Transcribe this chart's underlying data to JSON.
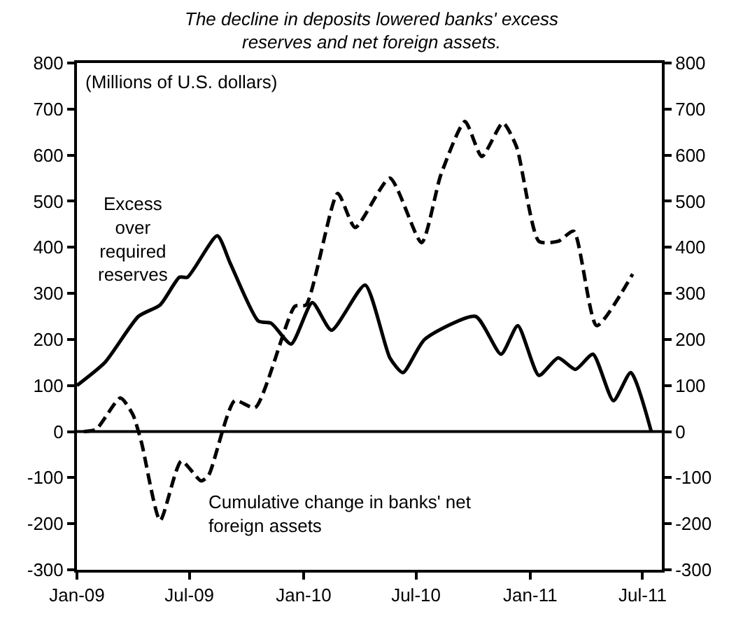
{
  "chart_data": {
    "type": "line",
    "title": "The decline in deposits lowered banks' excess reserves and net foreign assets.",
    "annotations": [
      "(Millions of U.S. dollars)"
    ],
    "series": [
      {
        "name": "Excess over required reserves",
        "color": "#000000",
        "line_style": "solid",
        "x": [
          "2009-01-01",
          "2009-02-15",
          "2009-04-10",
          "2009-05-15",
          "2009-06-15",
          "2009-06-28",
          "2009-08-15",
          "2009-09-05",
          "2009-10-20",
          "2009-11-10",
          "2009-12-12",
          "2010-01-15",
          "2010-02-15",
          "2010-04-10",
          "2010-05-20",
          "2010-06-10",
          "2010-07-15",
          "2010-10-05",
          "2010-11-15",
          "2010-12-12",
          "2011-01-15",
          "2011-02-15",
          "2011-03-15",
          "2011-04-12",
          "2011-05-15",
          "2011-06-12",
          "2011-07-15"
        ],
        "values": [
          100,
          150,
          250,
          275,
          335,
          335,
          425,
          365,
          240,
          235,
          190,
          280,
          220,
          318,
          160,
          128,
          200,
          250,
          168,
          230,
          122,
          160,
          135,
          168,
          67,
          128,
          0
        ]
      },
      {
        "name": "Cumulative change in banks' net foreign assets",
        "color": "#000000",
        "line_style": "dashed",
        "x": [
          "2009-01-12",
          "2009-02-01",
          "2009-03-12",
          "2009-04-01",
          "2009-04-15",
          "2009-05-15",
          "2009-06-18",
          "2009-07-20",
          "2009-08-01",
          "2009-09-12",
          "2009-10-15",
          "2009-12-18",
          "2010-01-05",
          "2010-02-25",
          "2010-03-25",
          "2010-05-20",
          "2010-07-10",
          "2010-08-10",
          "2010-09-18",
          "2010-10-15",
          "2010-11-18",
          "2010-12-10",
          "2011-01-15",
          "2011-02-15",
          "2011-03-12",
          "2011-04-18",
          "2011-06-15"
        ],
        "values": [
          0,
          5,
          73,
          37,
          -24,
          -193,
          -64,
          -107,
          -95,
          67,
          52,
          272,
          275,
          517,
          443,
          550,
          410,
          557,
          673,
          597,
          670,
          618,
          413,
          413,
          435,
          230,
          342
        ]
      }
    ],
    "xlim": [
      "2009-01-01",
      "2011-08-01"
    ],
    "xticks": [
      {
        "value": "2009-01-01",
        "label": "Jan-09"
      },
      {
        "value": "2009-07-01",
        "label": "Jul-09"
      },
      {
        "value": "2010-01-01",
        "label": "Jan-10"
      },
      {
        "value": "2010-07-01",
        "label": "Jul-10"
      },
      {
        "value": "2011-01-01",
        "label": "Jan-11"
      },
      {
        "value": "2011-07-01",
        "label": "Jul-11"
      }
    ],
    "ylim": [
      -300,
      800
    ],
    "yticks": [
      -300,
      -200,
      -100,
      0,
      100,
      200,
      300,
      400,
      500,
      600,
      700,
      800
    ],
    "y2lim": [
      -300,
      800
    ],
    "y2ticks": [
      -300,
      -200,
      -100,
      0,
      100,
      200,
      300,
      400,
      500,
      600,
      700,
      800
    ],
    "ref_lines": [
      {
        "axis": "y",
        "value": 0,
        "color": "#000000",
        "line_style": "solid"
      }
    ],
    "legend": false
  }
}
